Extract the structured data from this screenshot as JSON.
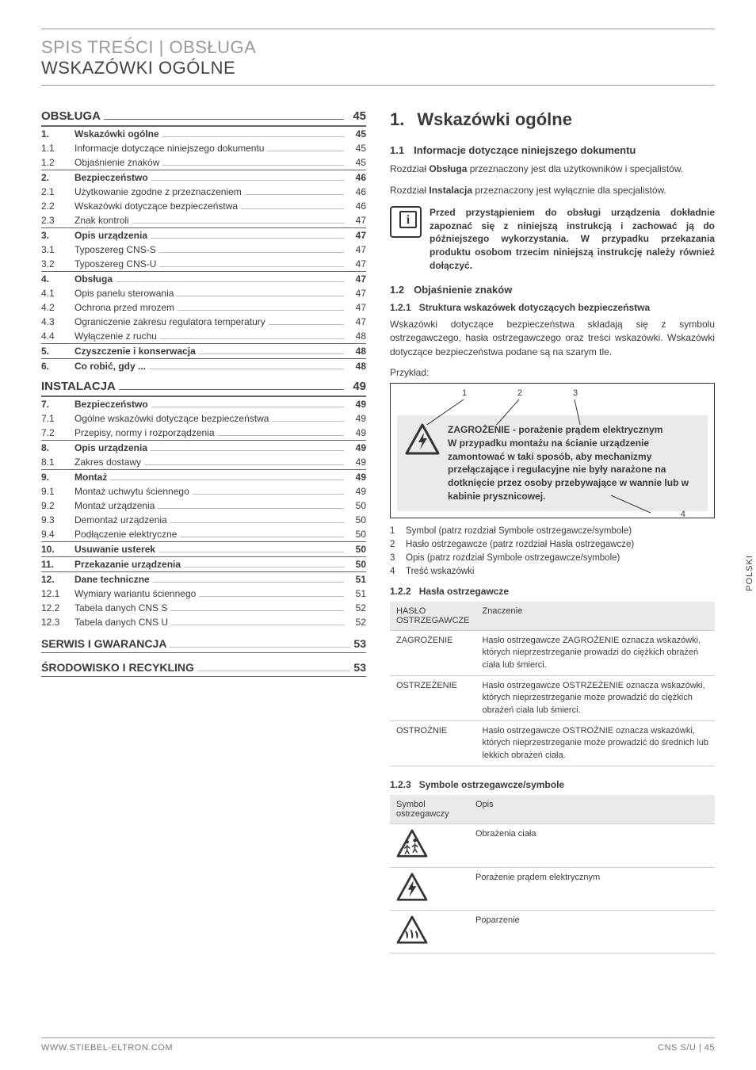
{
  "header": {
    "line1": "SPIS TREŚCI | OBSŁUGA",
    "line2": "WSKAZÓWKI OGÓLNE"
  },
  "side_tab": "POLSKI",
  "footer": {
    "left": "WWW.STIEBEL-ELTRON.COM",
    "right": "CNS S/U | 45"
  },
  "toc": {
    "sections": [
      {
        "type": "sec",
        "label": "OBSŁUGA",
        "page": "45"
      },
      {
        "type": "b",
        "num": "1.",
        "label": "Wskazówki ogólne",
        "page": "45"
      },
      {
        "type": "n",
        "num": "1.1",
        "label": "Informacje dotyczące niniejszego dokumentu",
        "page": "45"
      },
      {
        "type": "n",
        "num": "1.2",
        "label": "Objaśnienie znaków",
        "page": "45"
      },
      {
        "type": "b",
        "num": "2.",
        "label": "Bezpieczeństwo",
        "page": "46"
      },
      {
        "type": "n",
        "num": "2.1",
        "label": "Użytkowanie zgodne z przeznaczeniem",
        "page": "46"
      },
      {
        "type": "n",
        "num": "2.2",
        "label": "Wskazówki dotyczące bezpieczeństwa",
        "page": "46"
      },
      {
        "type": "n",
        "num": "2.3",
        "label": "Znak kontroli",
        "page": "47"
      },
      {
        "type": "b",
        "num": "3.",
        "label": "Opis urządzenia",
        "page": "47"
      },
      {
        "type": "n",
        "num": "3.1",
        "label": "Typoszereg CNS-S",
        "page": "47"
      },
      {
        "type": "n",
        "num": "3.2",
        "label": "Typoszereg CNS-U",
        "page": "47"
      },
      {
        "type": "b",
        "num": "4.",
        "label": "Obsługa",
        "page": "47"
      },
      {
        "type": "n",
        "num": "4.1",
        "label": "Opis panelu sterowania",
        "page": "47"
      },
      {
        "type": "n",
        "num": "4.2",
        "label": "Ochrona przed mrozem",
        "page": "47"
      },
      {
        "type": "n",
        "num": "4.3",
        "label": "Ograniczenie zakresu regulatora temperatury",
        "page": "47"
      },
      {
        "type": "n",
        "num": "4.4",
        "label": "Wyłączenie z ruchu",
        "page": "48"
      },
      {
        "type": "b",
        "num": "5.",
        "label": "Czyszczenie i konserwacja",
        "page": "48"
      },
      {
        "type": "b",
        "num": "6.",
        "label": "Co robić, gdy ...",
        "page": "48"
      },
      {
        "type": "sec",
        "label": "INSTALACJA",
        "page": "49"
      },
      {
        "type": "b",
        "num": "7.",
        "label": "Bezpieczeństwo",
        "page": "49"
      },
      {
        "type": "n",
        "num": "7.1",
        "label": "Ogólne wskazówki dotyczące bezpieczeństwa",
        "page": "49"
      },
      {
        "type": "n",
        "num": "7.2",
        "label": "Przepisy, normy i rozporządzenia",
        "page": "49"
      },
      {
        "type": "b",
        "num": "8.",
        "label": "Opis urządzenia",
        "page": "49"
      },
      {
        "type": "n",
        "num": "8.1",
        "label": "Zakres dostawy",
        "page": "49"
      },
      {
        "type": "b",
        "num": "9.",
        "label": "Montaż",
        "page": "49"
      },
      {
        "type": "n",
        "num": "9.1",
        "label": "Montaż uchwytu ściennego",
        "page": "49"
      },
      {
        "type": "n",
        "num": "9.2",
        "label": "Montaż urządzenia",
        "page": "50"
      },
      {
        "type": "n",
        "num": "9.3",
        "label": "Demontaż urządzenia",
        "page": "50"
      },
      {
        "type": "n",
        "num": "9.4",
        "label": "Podłączenie elektryczne",
        "page": "50"
      },
      {
        "type": "b",
        "num": "10.",
        "label": "Usuwanie usterek",
        "page": "50"
      },
      {
        "type": "b",
        "num": "11.",
        "label": "Przekazanie urządzenia",
        "page": "50"
      },
      {
        "type": "b",
        "num": "12.",
        "label": "Dane techniczne",
        "page": "51"
      },
      {
        "type": "n",
        "num": "12.1",
        "label": "Wymiary wariantu ściennego",
        "page": "51"
      },
      {
        "type": "n",
        "num": "12.2",
        "label": "Tabela danych CNS S",
        "page": "52"
      },
      {
        "type": "n",
        "num": "12.3",
        "label": "Tabela danych CNS U",
        "page": "52"
      },
      {
        "type": "alone",
        "label": "SERWIS I GWARANCJA",
        "page": "53"
      },
      {
        "type": "alone",
        "label": "ŚRODOWISKO I RECYKLING",
        "page": "53"
      }
    ]
  },
  "content": {
    "h1_num": "1.",
    "h1_text": "Wskazówki ogólne",
    "h2_11_num": "1.1",
    "h2_11_text": "Informacje dotyczące niniejszego dokumentu",
    "p1a": "Rozdział ",
    "p1b": "Obsługa",
    "p1c": " przeznaczony jest dla użytkowników i specjalistów.",
    "p2a": "Rozdział ",
    "p2b": "Instalacja",
    "p2c": " przeznaczony jest wyłącznie dla specjalistów.",
    "note": "Przed przystąpieniem do obsługi urządzenia dokładnie zapoznać się z niniejszą instrukcją i zachować ją do późniejszego wykorzystania. W przypadku przekazania produktu osobom trzecim niniejszą instrukcję należy również dołączyć.",
    "h2_12_num": "1.2",
    "h2_12_text": "Objaśnienie znaków",
    "h3_121_num": "1.2.1",
    "h3_121_text": "Struktura wskazówek dotyczących bezpieczeństwa",
    "p3": "Wskazówki dotyczące bezpieczeństwa składają się z symbolu ostrzegawczego, hasła ostrzegawczego oraz treści wskazówki. Wskazówki dotyczące bezpieczeństwa podane są na szarym tle.",
    "example_label": "Przykład:",
    "callouts": {
      "c1": "1",
      "c2": "2",
      "c3": "3",
      "c4": "4"
    },
    "warn_title": "ZAGROŻENIE - porażenie prądem elektrycznym",
    "warn_body": "W przypadku montażu na ścianie urządzenie zamontować w taki sposób, aby mechanizmy przełączające i regulacyjne nie były narażone na dotknięcie przez osoby przebywające w wannie lub w kabinie prysznicowej.",
    "legend": [
      {
        "n": "1",
        "t": "Symbol (patrz rozdział Symbole ostrzegawcze/symbole)"
      },
      {
        "n": "2",
        "t": "Hasło ostrzegawcze (patrz rozdział Hasła ostrzegawcze)"
      },
      {
        "n": "3",
        "t": "Opis (patrz rozdział Symbole ostrzegawcze/symbole)"
      },
      {
        "n": "4",
        "t": "Treść wskazówki"
      }
    ],
    "h3_122_num": "1.2.2",
    "h3_122_text": "Hasła ostrzegawcze",
    "table1": {
      "h0": "HASŁO OSTRZEGAWCZE",
      "h1": "Znaczenie",
      "rows": [
        {
          "a": "ZAGROŻENIE",
          "b": "Hasło ostrzegawcze ZAGROŻENIE oznacza wskazówki, których nieprzestrzeganie prowadzi do ciężkich obrażeń ciała lub śmierci."
        },
        {
          "a": "OSTRZEŻENIE",
          "b": "Hasło ostrzegawcze OSTRZEŻENIE oznacza wskazówki, których nieprzestrzeganie może prowadzić do ciężkich obrażeń ciała lub śmierci."
        },
        {
          "a": "OSTROŻNIE",
          "b": "Hasło ostrzegawcze OSTROŻNIE oznacza wskazówki, których nieprzestrzeganie może prowadzić do średnich lub lekkich obrażeń ciała."
        }
      ]
    },
    "h3_123_num": "1.2.3",
    "h3_123_text": "Symbole ostrzegawcze/symbole",
    "table2": {
      "h0": "Symbol ostrzegawczy",
      "h1": "Opis",
      "rows": [
        {
          "icon": "injury",
          "b": "Obrażenia ciała"
        },
        {
          "icon": "shock",
          "b": "Porażenie prądem elektrycznym"
        },
        {
          "icon": "burn",
          "b": "Poparzenie"
        }
      ]
    }
  }
}
